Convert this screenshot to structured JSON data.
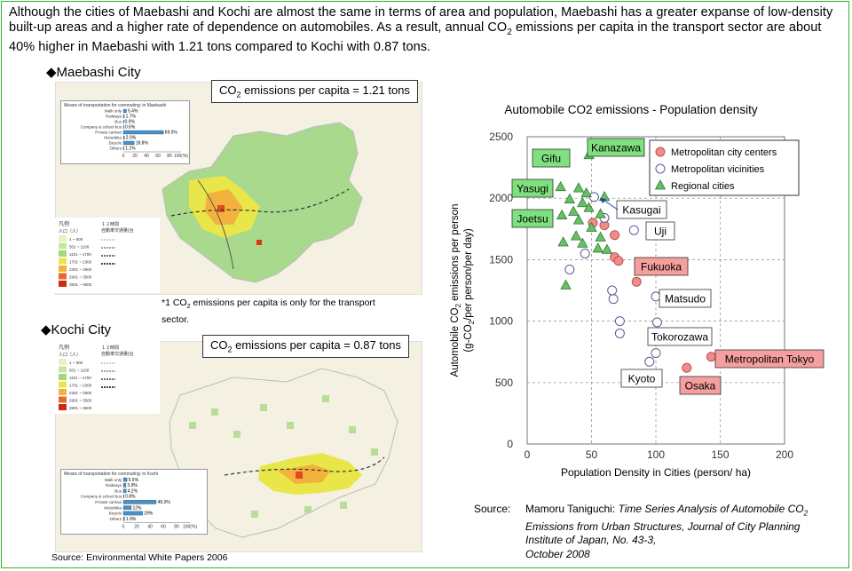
{
  "intro": {
    "part1": "Although the cities of Maebashi and Kochi are almost the same in terms of area and population, Maebashi has a greater expanse of low-density built-up areas and a higher rate of dependence on automobiles. As a result, annual CO",
    "sub": "2",
    "part2": " emissions per capita in the transport sector are about 40% higher in Maebashi with 1.21 tons compared to Kochi with 0.87 tons."
  },
  "maebashi": {
    "title": "◆Maebashi City",
    "emissions_pre": "CO",
    "emissions_sub": "2",
    "emissions_post": " emissions per capita = 1.21 tons",
    "inset_title": "Means of transportation for commuting: in Maebashi",
    "modes": [
      "Walk only",
      "Railways",
      "Bus",
      "Company & school bus",
      "Private car/taxi",
      "Motorbike",
      "Bicycle",
      "Others"
    ],
    "mode_values": [
      5.4,
      1.7,
      0.0,
      0.6,
      69.5,
      2.0,
      18.8,
      1.1
    ],
    "mode_labels": [
      "5.4%",
      "1.7%",
      "0.0%",
      "0.6%",
      "69.5%",
      "2.0%",
      "18.8%",
      "1.1%"
    ],
    "axis_ticks": [
      "0",
      "20",
      "40",
      "60",
      "80",
      "100(%)"
    ]
  },
  "kochi": {
    "title": "◆Kochi City",
    "emissions_pre": "CO",
    "emissions_sub": "2",
    "emissions_post": " emissions per capita = 0.87 tons",
    "inset_title": "Means of transportation for commuting: in Kochi",
    "modes": [
      "Walk only",
      "Railways",
      "Bus",
      "Company & school bus",
      "Private car/taxi",
      "Motorbike",
      "Bicycle",
      "Others"
    ],
    "mode_values": [
      5.5,
      3.9,
      4.2,
      0.8,
      49.3,
      12.0,
      29.0,
      1.9
    ],
    "mode_labels": [
      "5.5%",
      "3.9%",
      "4.2%",
      "0.8%",
      "49.3%",
      "12%",
      "29%",
      "1.9%"
    ],
    "axis_ticks": [
      "0",
      "20",
      "40",
      "60",
      "80",
      "100(%)"
    ]
  },
  "map_legend": {
    "title": "凡例",
    "unit": "人口（人）",
    "ranges": [
      "1 ~ 500",
      "501 ~ 1100",
      "1101 ~ 1700",
      "1701 ~ 2300",
      "2301 ~ 2900",
      "2901 ~ 3500",
      "3501 ~ 3600"
    ],
    "traffic_title": "１２時間\n自動車交通量(台"
  },
  "note": {
    "pre": "*1   CO",
    "sub": "2",
    "post": " emissions per capita is only for the transport sector."
  },
  "source_left": "Source: Environmental White Papers 2006",
  "source_right": {
    "label": "Source:",
    "author": "Mamoru Taniguchi: ",
    "title_pre": "Time Series Analysis of Automobile CO",
    "title_sub": "2",
    "title_post": " Emissions from Urban Structures, Journal of City Planning Institute of Japan, No. 43-3,",
    "date": "October 2008"
  },
  "colors": {
    "frame": "#2db52d",
    "metro_center": "#f08c8c",
    "metro_vicinity": "#ffffff",
    "regional": "#66c066",
    "label_green": "#7fe07f",
    "label_red": "#f59f9f",
    "bar": "#4a90c8"
  },
  "chart_data": {
    "type": "scatter",
    "title": "Automobile CO2 emissions - Population density",
    "xlabel": "Population Density in Cities (person/ ha)",
    "ylabel_pre": "Automobile CO",
    "ylabel_sub": "2",
    "ylabel_post": " emissions per person",
    "ylabel2_pre": "(g-CO",
    "ylabel2_sub": "2",
    "ylabel2_post": "/per person/per day)",
    "xlim": [
      0,
      200
    ],
    "ylim": [
      0,
      2500
    ],
    "xticks": [
      0,
      50,
      100,
      150,
      200
    ],
    "yticks": [
      0,
      500,
      1000,
      1500,
      2000,
      2500
    ],
    "grid": true,
    "legend_position": "top-right",
    "series": [
      {
        "name": "Metropolitan city centers",
        "marker": "circle-filled",
        "points": [
          [
            51,
            1800
          ],
          [
            60,
            1780
          ],
          [
            68,
            1700
          ],
          [
            68,
            1520
          ],
          [
            71,
            1490
          ],
          [
            85,
            1320
          ],
          [
            143,
            710
          ],
          [
            124,
            620
          ]
        ]
      },
      {
        "name": "Metropolitan vicinities",
        "marker": "circle-open",
        "points": [
          [
            52,
            2010
          ],
          [
            60,
            1840
          ],
          [
            83,
            1740
          ],
          [
            33,
            1420
          ],
          [
            45,
            1550
          ],
          [
            66,
            1250
          ],
          [
            67,
            1180
          ],
          [
            72,
            1000
          ],
          [
            72,
            900
          ],
          [
            100,
            1200
          ],
          [
            101,
            990
          ],
          [
            102,
            880
          ],
          [
            100,
            740
          ],
          [
            95,
            670
          ]
        ]
      },
      {
        "name": "Regional cities",
        "marker": "triangle",
        "points": [
          [
            48,
            2350
          ],
          [
            26,
            2090
          ],
          [
            40,
            2080
          ],
          [
            46,
            2040
          ],
          [
            60,
            2010
          ],
          [
            33,
            1990
          ],
          [
            43,
            1960
          ],
          [
            48,
            1920
          ],
          [
            36,
            1890
          ],
          [
            57,
            1870
          ],
          [
            27,
            1860
          ],
          [
            40,
            1820
          ],
          [
            50,
            1760
          ],
          [
            38,
            1690
          ],
          [
            57,
            1680
          ],
          [
            28,
            1640
          ],
          [
            43,
            1630
          ],
          [
            55,
            1590
          ],
          [
            62,
            1580
          ],
          [
            30,
            1290
          ]
        ]
      }
    ],
    "annotations": [
      {
        "text": "Kanazawa",
        "style": "green"
      },
      {
        "text": "Gifu",
        "style": "green"
      },
      {
        "text": "Yasugi",
        "style": "green"
      },
      {
        "text": "Joetsu",
        "style": "green"
      },
      {
        "text": "Kasugai",
        "style": "white"
      },
      {
        "text": "Uji",
        "style": "white"
      },
      {
        "text": "Fukuoka",
        "style": "red"
      },
      {
        "text": "Matsudo",
        "style": "white"
      },
      {
        "text": "Tokorozawa",
        "style": "white"
      },
      {
        "text": "Metropolitan Tokyo",
        "style": "red"
      },
      {
        "text": "Osaka",
        "style": "red"
      },
      {
        "text": "Kyoto",
        "style": "white"
      }
    ]
  }
}
